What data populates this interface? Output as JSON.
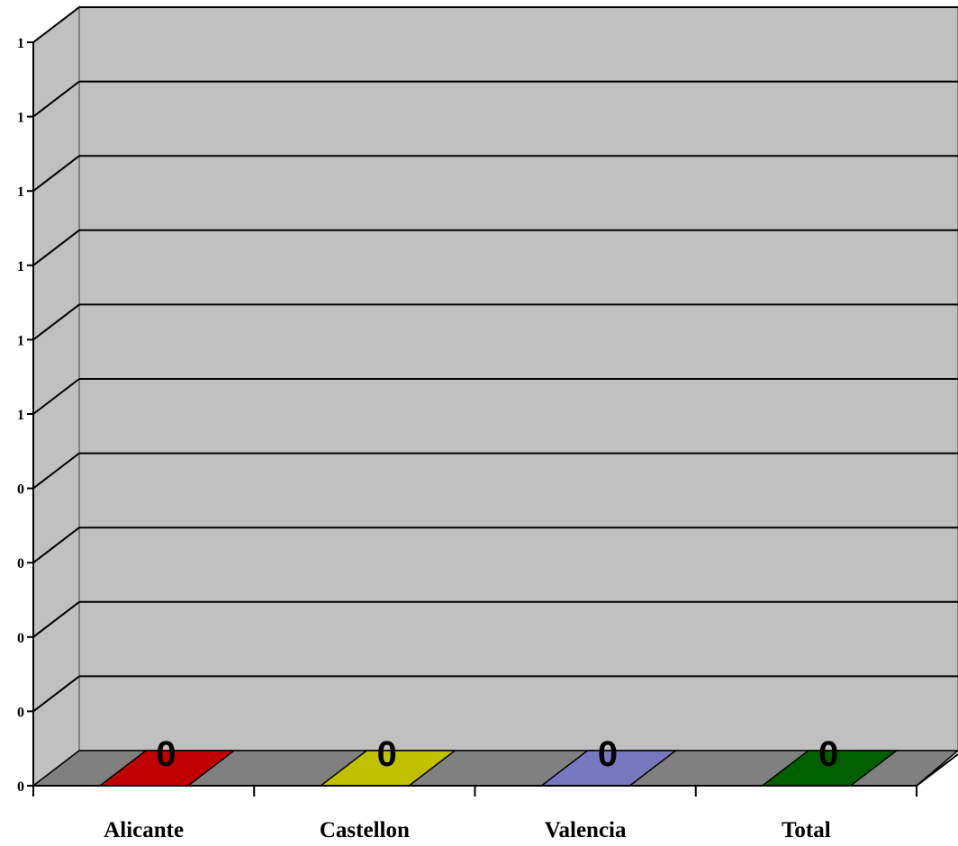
{
  "chart_data": {
    "type": "bar",
    "title": "",
    "xlabel": "",
    "ylabel": "",
    "categories": [
      "Alicante",
      "Castellon",
      "Valencia",
      "Total"
    ],
    "values": [
      0,
      0,
      0,
      0
    ],
    "data_labels": [
      "0",
      "0",
      "0",
      "0"
    ],
    "y_tick_labels": [
      "0",
      "0",
      "0",
      "0",
      "0",
      "1",
      "1",
      "1",
      "1",
      "1",
      "1"
    ],
    "ylim": [
      0,
      1
    ],
    "grid": true,
    "legend": "none",
    "style": "3d",
    "colors": {
      "background": "#ffffff",
      "back_wall": "#c0c0c0",
      "floor": "#808080",
      "bars": [
        "#c00000",
        "#c0c000",
        "#7878c0",
        "#006000"
      ]
    }
  }
}
